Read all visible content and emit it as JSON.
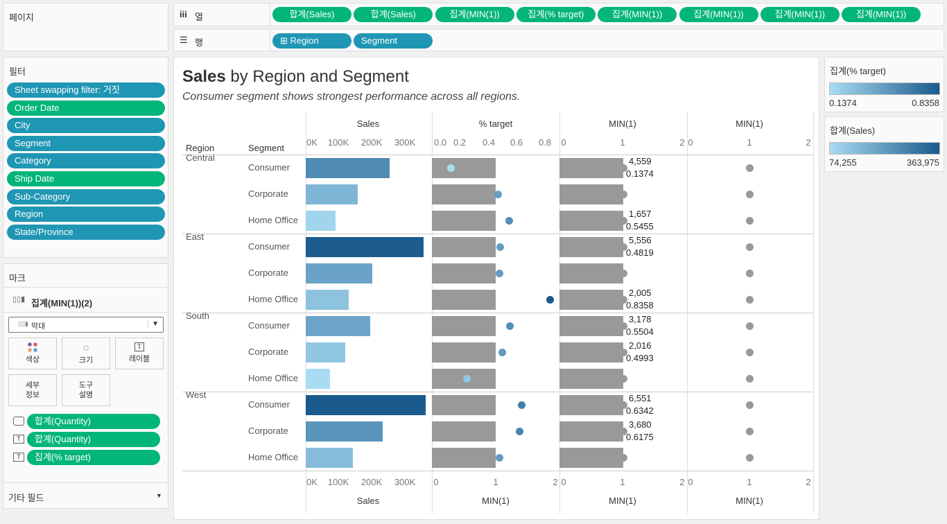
{
  "pages": {
    "title": "페이지"
  },
  "filters": {
    "title": "필터",
    "items": [
      {
        "label": "Sheet swapping filter: 거짓",
        "kind": "blue"
      },
      {
        "label": "Order Date",
        "kind": "green"
      },
      {
        "label": "City",
        "kind": "blue"
      },
      {
        "label": "Segment",
        "kind": "blue"
      },
      {
        "label": "Category",
        "kind": "blue"
      },
      {
        "label": "Ship Date",
        "kind": "green"
      },
      {
        "label": "Sub-Category",
        "kind": "blue"
      },
      {
        "label": "Region",
        "kind": "blue"
      },
      {
        "label": "State/Province",
        "kind": "blue"
      }
    ]
  },
  "marks": {
    "title": "마크",
    "layer": "집계(MIN(1))(2)",
    "type": "막대",
    "cards": {
      "color": "색상",
      "size": "크기",
      "label": "레이블",
      "detail": "세부\n정보",
      "tooltip": "도구\n설명"
    },
    "fields": [
      {
        "icon": "tooltip-icon",
        "label": "합계(Quantity)"
      },
      {
        "icon": "text-icon",
        "label": "합계(Quantity)"
      },
      {
        "icon": "text-icon",
        "label": "집계(% target)"
      }
    ],
    "other": "기타 필드"
  },
  "columns": {
    "label": "열",
    "pills": [
      "합계(Sales)",
      "합계(Sales)",
      "집계(MIN(1))",
      "집계(% target)",
      "집계(MIN(1))",
      "집계(MIN(1))",
      "집계(MIN(1))",
      "집계(MIN(1))"
    ]
  },
  "rows": {
    "label": "행",
    "pills": [
      "Region",
      "Segment"
    ]
  },
  "viz": {
    "title_bold": "Sales",
    "title_rest": " by Region and Segment",
    "subtitle": "Consumer segment shows strongest performance across all regions.",
    "region_header": "Region",
    "segment_header": "Segment",
    "col_headers": [
      "Sales",
      "% target",
      "MIN(1)",
      "MIN(1)"
    ],
    "top_ticks": {
      "sales": [
        "0K",
        "100K",
        "200K",
        "300K"
      ],
      "target": [
        "0.0",
        "0.2",
        "0.4",
        "0.6",
        "0.8"
      ],
      "min1": [
        "0",
        "1",
        "2"
      ],
      "min1b": [
        "0",
        "1",
        "2"
      ]
    },
    "bottom_ticks": {
      "sales": [
        "0K",
        "100K",
        "200K",
        "300K"
      ],
      "target": [
        "0",
        "1",
        "2"
      ],
      "min1": [
        "0",
        "1",
        "2"
      ],
      "min1b": [
        "0",
        "1",
        "2"
      ]
    },
    "bottom_labels": [
      "Sales",
      "MIN(1)",
      "MIN(1)",
      "MIN(1)"
    ]
  },
  "table": [
    {
      "region": "Central",
      "segment": "Consumer",
      "sales": 254000,
      "target": 0.1374,
      "qty": "4,559",
      "pct": "0.1374"
    },
    {
      "region": "",
      "segment": "Corporate",
      "sales": 158000,
      "target": 0.47,
      "qty": "",
      "pct": ""
    },
    {
      "region": "",
      "segment": "Home Office",
      "sales": 90000,
      "target": 0.5455,
      "qty": "1,657",
      "pct": "0.5455"
    },
    {
      "region": "East",
      "segment": "Consumer",
      "sales": 358000,
      "target": 0.4819,
      "qty": "5,556",
      "pct": "0.4819"
    },
    {
      "region": "",
      "segment": "Corporate",
      "sales": 202000,
      "target": 0.48,
      "qty": "",
      "pct": ""
    },
    {
      "region": "",
      "segment": "Home Office",
      "sales": 130000,
      "target": 0.8358,
      "qty": "2,005",
      "pct": "0.8358"
    },
    {
      "region": "South",
      "segment": "Consumer",
      "sales": 196000,
      "target": 0.5504,
      "qty": "3,178",
      "pct": "0.5504"
    },
    {
      "region": "",
      "segment": "Corporate",
      "sales": 120000,
      "target": 0.4993,
      "qty": "2,016",
      "pct": "0.4993"
    },
    {
      "region": "",
      "segment": "Home Office",
      "sales": 74255,
      "target": 0.25,
      "qty": "",
      "pct": ""
    },
    {
      "region": "West",
      "segment": "Consumer",
      "sales": 363975,
      "target": 0.6342,
      "qty": "6,551",
      "pct": "0.6342"
    },
    {
      "region": "",
      "segment": "Corporate",
      "sales": 234000,
      "target": 0.6175,
      "qty": "3,680",
      "pct": "0.6175"
    },
    {
      "region": "",
      "segment": "Home Office",
      "sales": 143000,
      "target": 0.48,
      "qty": "",
      "pct": ""
    }
  ],
  "legends": {
    "target": {
      "title": "집계(% target)",
      "min": "0.1374",
      "max": "0.8358"
    },
    "sales": {
      "title": "합계(Sales)",
      "min": "74,255",
      "max": "363,975"
    }
  },
  "colors": {
    "light": "#a9dcf3",
    "dark": "#1a5a8c",
    "bar_grey": "#999999",
    "green": "#03b57b",
    "blue": "#1f96b3"
  }
}
